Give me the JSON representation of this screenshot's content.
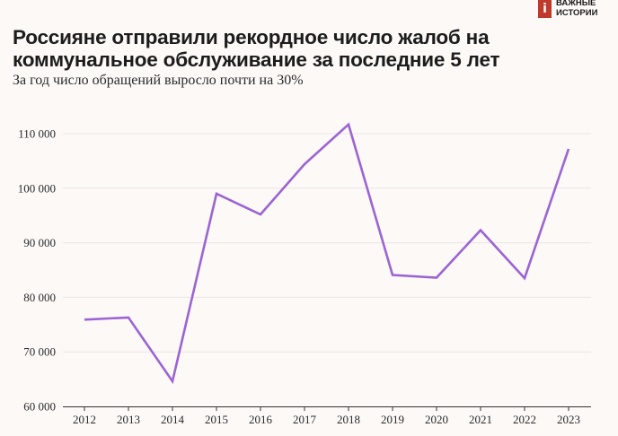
{
  "brand": {
    "logo_glyph": "i",
    "line1": "ВАЖНЫЕ",
    "line2": "ИСТОРИИ",
    "color": "#c0392b"
  },
  "chart_data": {
    "type": "line",
    "title": "Россияне отправили рекордное число жалоб на коммунальное обслуживание за последние 5 лет",
    "subtitle": "За год число обращений выросло почти на 30%",
    "xlabel": "",
    "ylabel": "",
    "x": [
      2012,
      2013,
      2014,
      2015,
      2016,
      2017,
      2018,
      2019,
      2020,
      2021,
      2022,
      2023
    ],
    "series": [
      {
        "values": [
          75900,
          76300,
          64600,
          99000,
          95200,
          104400,
          111700,
          84100,
          83600,
          92300,
          83500,
          107200
        ],
        "color": "#9b64d4"
      }
    ],
    "ylim": [
      60000,
      110000
    ],
    "yticks": [
      60000,
      70000,
      80000,
      90000,
      100000,
      110000
    ],
    "ytick_labels": [
      "60 000",
      "70 000",
      "80 000",
      "90 000",
      "100 000",
      "110 000"
    ],
    "xtick_labels": [
      "2012",
      "2013",
      "2014",
      "2015",
      "2016",
      "2017",
      "2018",
      "2019",
      "2020",
      "2021",
      "2022",
      "2023"
    ],
    "grid": true
  }
}
